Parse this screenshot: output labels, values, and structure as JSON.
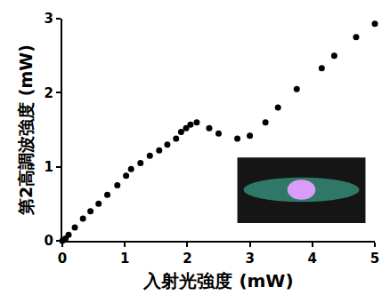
{
  "chart_data": {
    "type": "scatter",
    "x_label": "入射光強度 (mW)",
    "y_label": "第2高調波強度 (mW)",
    "x": [
      0,
      0.05,
      0.1,
      0.2,
      0.33,
      0.45,
      0.58,
      0.72,
      0.88,
      1.02,
      1.1,
      1.25,
      1.4,
      1.55,
      1.68,
      1.82,
      1.9,
      1.98,
      2.05,
      2.15,
      2.35,
      2.5,
      2.8,
      3.0,
      3.25,
      3.45,
      3.75,
      4.15,
      4.35,
      4.7,
      5.0
    ],
    "values": [
      0,
      0.03,
      0.08,
      0.18,
      0.3,
      0.4,
      0.5,
      0.62,
      0.75,
      0.88,
      0.97,
      1.05,
      1.15,
      1.22,
      1.3,
      1.38,
      1.47,
      1.52,
      1.57,
      1.6,
      1.52,
      1.45,
      1.38,
      1.42,
      1.6,
      1.8,
      2.05,
      2.33,
      2.5,
      2.75,
      2.93
    ],
    "color": "#000000",
    "marker": "circle",
    "xlim": [
      0,
      5
    ],
    "xticks": [
      0,
      1,
      2,
      3,
      4,
      5
    ],
    "ylim": [
      0,
      3
    ],
    "yticks": [
      0,
      1,
      2,
      3
    ],
    "grid": false
  }
}
